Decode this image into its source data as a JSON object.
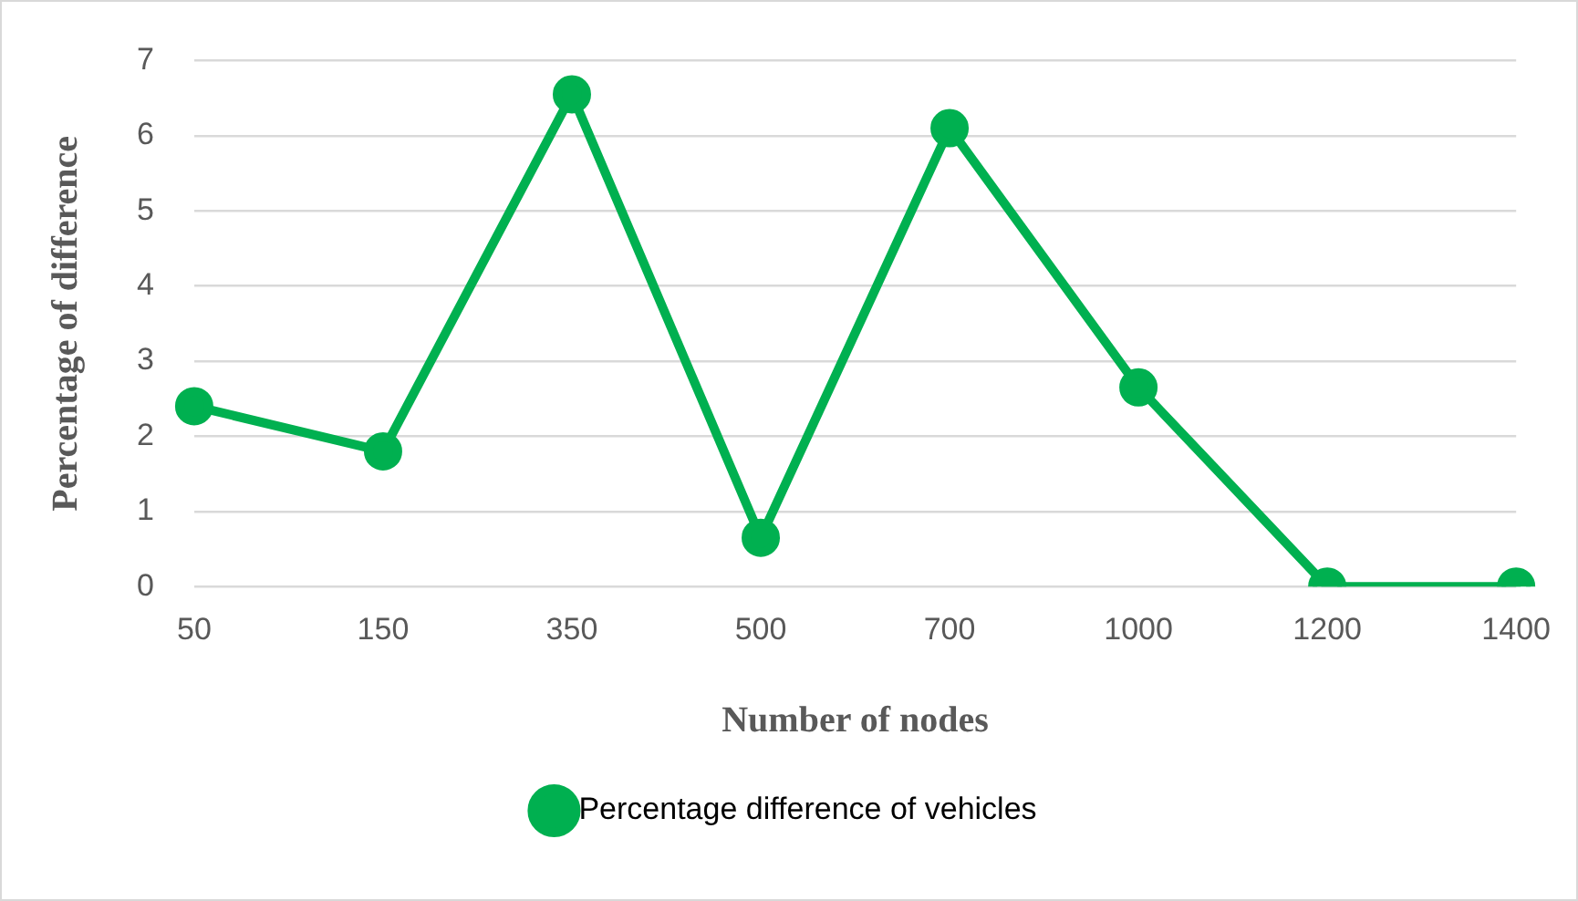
{
  "chart_data": {
    "type": "line",
    "xlabel": "Number of nodes",
    "ylabel": "Percentage of difference",
    "categories": [
      "50",
      "150",
      "350",
      "500",
      "700",
      "1000",
      "1200",
      "1400"
    ],
    "series": [
      {
        "name": "Percentage difference of vehicles",
        "color": "#00b050",
        "values": [
          2.4,
          1.8,
          6.55,
          0.65,
          6.1,
          2.65,
          0,
          0
        ]
      }
    ],
    "ylim": [
      0,
      7
    ],
    "yticks": [
      0,
      1,
      2,
      3,
      4,
      5,
      6,
      7
    ],
    "grid": "y",
    "legend": "bottom",
    "marker": "circle",
    "line_style": "solid"
  }
}
